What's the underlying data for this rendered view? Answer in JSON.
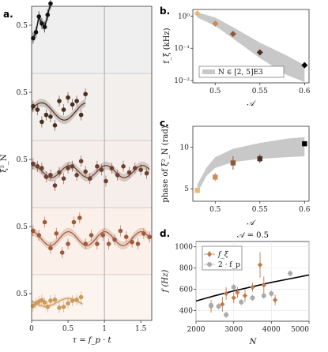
{
  "panels": {
    "a": {
      "label": "a.",
      "ylabel": "ξ²_N",
      "xlabel": "τ = f_p · t",
      "xlim": [
        0,
        1.65
      ],
      "xticks": [
        "0",
        "0.5",
        "1",
        "1.5"
      ],
      "ytick_labels": [
        "0.5",
        "0.5",
        "0.5",
        "0.5",
        "0.5"
      ],
      "vline_x": 1.0
    },
    "b": {
      "label": "b.",
      "ylabel": "f_ξ (kHz)",
      "xlabel": "𝒜",
      "xticks": [
        "0.5",
        "0.55",
        "0.6"
      ],
      "yticks": [
        "10⁰",
        "10⁻¹",
        "10⁻²"
      ],
      "legend": "N ∈ [2, 5]E3"
    },
    "c": {
      "label": "c.",
      "ylabel": "phase of ξ²_N (rad)",
      "xlabel": "𝒜",
      "xticks": [
        "0.5",
        "0.55",
        "0.6"
      ],
      "yticks": [
        "5",
        "10"
      ]
    },
    "d": {
      "label": "d.",
      "title": "𝒜 = 0.5",
      "ylabel": "f (Hz)",
      "xlabel": "N",
      "xticks": [
        "2000",
        "3000",
        "4000",
        "5000"
      ],
      "yticks": [
        "400",
        "600",
        "800",
        "1000"
      ],
      "legend": [
        "f_ξ",
        "2 · f_p"
      ]
    }
  },
  "chart_data": [
    {
      "panel": "a",
      "type": "scatter",
      "xlim": [
        0,
        1.65
      ],
      "series": [
        {
          "color": "#111111",
          "x": [
            0.02,
            0.06,
            0.1,
            0.14,
            0.18,
            0.22,
            0.26
          ],
          "y": [
            0.35,
            0.42,
            0.6,
            0.52,
            0.48,
            0.62,
            0.75
          ]
        },
        {
          "color": "#4a2e1e",
          "x": [
            0.02,
            0.08,
            0.14,
            0.2,
            0.26,
            0.32,
            0.38,
            0.44,
            0.5,
            0.56,
            0.62,
            0.68,
            0.74
          ],
          "y": [
            0.34,
            0.3,
            0.16,
            0.24,
            0.22,
            0.12,
            0.4,
            0.3,
            0.44,
            0.36,
            0.4,
            0.24,
            0.48
          ]
        },
        {
          "color": "#6b4030",
          "x": [
            0.02,
            0.08,
            0.14,
            0.2,
            0.26,
            0.32,
            0.38,
            0.44,
            0.5,
            0.56,
            0.62,
            0.68,
            0.74,
            0.8,
            0.9,
            0.96,
            1.02,
            1.1,
            1.18,
            1.26,
            1.34,
            1.42,
            1.5,
            1.58
          ],
          "y": [
            0.45,
            0.42,
            0.4,
            0.3,
            0.32,
            0.2,
            0.35,
            0.28,
            0.4,
            0.42,
            0.32,
            0.48,
            0.36,
            0.28,
            0.42,
            0.38,
            0.25,
            0.4,
            0.32,
            0.42,
            0.35,
            0.4,
            0.38,
            0.34
          ]
        },
        {
          "color": "#a05a3a",
          "x": [
            0.02,
            0.1,
            0.18,
            0.26,
            0.34,
            0.42,
            0.5,
            0.58,
            0.66,
            0.74,
            0.82,
            0.9,
            0.98,
            1.06,
            1.14,
            1.22,
            1.3,
            1.38,
            1.46,
            1.54,
            1.62
          ],
          "y": [
            0.45,
            0.4,
            0.55,
            0.25,
            0.42,
            0.2,
            0.3,
            0.55,
            0.6,
            0.3,
            0.4,
            0.3,
            0.4,
            0.3,
            0.35,
            0.45,
            0.38,
            0.32,
            0.3,
            0.42,
            0.38
          ]
        },
        {
          "color": "#cc9a5c",
          "x": [
            0.02,
            0.06,
            0.1,
            0.14,
            0.18,
            0.22,
            0.26,
            0.32,
            0.38,
            0.44,
            0.5,
            0.56,
            0.62,
            0.68
          ],
          "y": [
            0.22,
            0.28,
            0.32,
            0.35,
            0.3,
            0.2,
            0.34,
            0.36,
            0.18,
            0.2,
            0.28,
            0.34,
            0.36,
            0.42
          ]
        }
      ],
      "fits": [
        {
          "color": "#4a2e1e",
          "offset": 0.28,
          "amp": 0.1,
          "freq": 1.6,
          "phase": 0.2,
          "x": [
            0,
            0.75
          ]
        },
        {
          "color": "#6b4030",
          "offset": 0.36,
          "amp": 0.07,
          "freq": 2.0,
          "phase": 1.3,
          "x": [
            0,
            1.62
          ]
        },
        {
          "color": "#a05a3a",
          "offset": 0.36,
          "amp": 0.08,
          "freq": 2.0,
          "phase": 1.5,
          "x": [
            0,
            1.62
          ]
        },
        {
          "color": "#cc9a5c",
          "offset": 0.3,
          "amp": 0.09,
          "freq": 1.6,
          "phase": 2.8,
          "x": [
            0,
            0.7
          ]
        }
      ]
    },
    {
      "panel": "b",
      "type": "scatter",
      "xscale": "linear",
      "yscale": "log",
      "xlim": [
        0.475,
        0.605
      ],
      "ylim": [
        0.0085,
        1.6
      ],
      "points": [
        {
          "x": 0.48,
          "y": 1.2,
          "color": "#e8b878"
        },
        {
          "x": 0.5,
          "y": 0.58,
          "color": "#c78a5a"
        },
        {
          "x": 0.52,
          "y": 0.28,
          "color": "#8c5a3a"
        },
        {
          "x": 0.55,
          "y": 0.075,
          "color": "#4a3020"
        },
        {
          "x": 0.6,
          "y": 0.03,
          "color": "#000000"
        }
      ],
      "band": {
        "x": [
          0.48,
          0.5,
          0.52,
          0.55,
          0.58,
          0.6
        ],
        "lo": [
          0.9,
          0.5,
          0.2,
          0.05,
          0.015,
          0.009
        ],
        "hi": [
          1.3,
          0.9,
          0.45,
          0.15,
          0.06,
          0.03
        ]
      }
    },
    {
      "panel": "c",
      "type": "scatter",
      "xlim": [
        0.475,
        0.605
      ],
      "ylim": [
        3.5,
        12.5
      ],
      "points": [
        {
          "x": 0.48,
          "y": 4.8,
          "err": 0.3,
          "color": "#e8b878"
        },
        {
          "x": 0.5,
          "y": 6.4,
          "err": 0.5,
          "color": "#d08a5a"
        },
        {
          "x": 0.52,
          "y": 8.1,
          "err": 0.8,
          "color": "#8c5a3a"
        },
        {
          "x": 0.55,
          "y": 8.6,
          "err": 0.5,
          "color": "#4a3020"
        },
        {
          "x": 0.6,
          "y": 10.4,
          "err": 0.2,
          "color": "#000000"
        }
      ],
      "band": {
        "x": [
          0.48,
          0.49,
          0.5,
          0.52,
          0.55,
          0.58,
          0.6
        ],
        "lo": [
          4.5,
          6.5,
          7.5,
          8.2,
          8.6,
          8.8,
          8.9
        ],
        "hi": [
          5.5,
          7.5,
          8.8,
          9.8,
          10.5,
          11.0,
          11.2
        ]
      }
    },
    {
      "panel": "d",
      "type": "scatter",
      "xlim": [
        2000,
        5000
      ],
      "ylim": [
        300,
        1050
      ],
      "series": [
        {
          "name": "f_ξ",
          "color": "#c07a4a",
          "marker": "diamond",
          "x": [
            2400,
            2700,
            2800,
            3000,
            3100,
            3300,
            3500,
            3700,
            3800,
            4100
          ],
          "y": [
            440,
            460,
            560,
            520,
            570,
            540,
            620,
            830,
            640,
            500
          ],
          "err": [
            60,
            70,
            60,
            50,
            50,
            60,
            40,
            120,
            80,
            50
          ]
        },
        {
          "name": "2 · f_p",
          "color": "#aaaaaa",
          "marker": "circle",
          "x": [
            2400,
            2600,
            2800,
            3000,
            3200,
            3500,
            3800,
            4000,
            4500
          ],
          "y": [
            450,
            440,
            360,
            620,
            480,
            520,
            540,
            560,
            750
          ],
          "err": [
            30,
            30,
            30,
            30,
            30,
            30,
            30,
            30,
            30
          ]
        }
      ],
      "curve": {
        "x": [
          2000,
          2500,
          3000,
          3500,
          4000,
          4500,
          5000
        ],
        "y": [
          490,
          540,
          585,
          625,
          665,
          700,
          735
        ]
      }
    }
  ]
}
